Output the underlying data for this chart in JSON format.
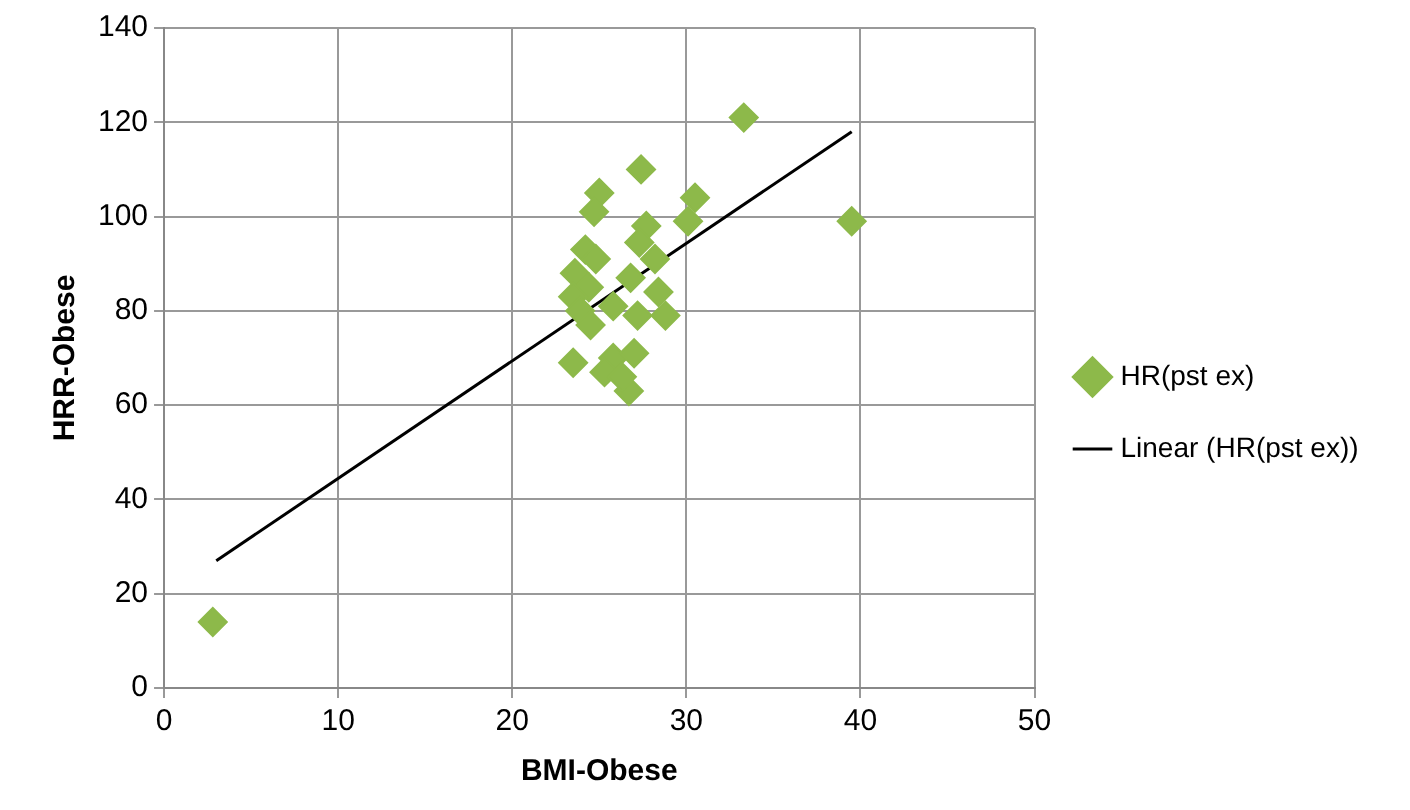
{
  "chart_data": {
    "type": "scatter",
    "xlabel": "BMI-Obese",
    "ylabel": "HRR-Obese",
    "xlim": [
      0,
      50
    ],
    "xticks": [
      0,
      10,
      20,
      30,
      40,
      50
    ],
    "ylim": [
      0,
      140
    ],
    "yticks": [
      0,
      20,
      40,
      60,
      80,
      100,
      120,
      140
    ],
    "grid": true,
    "legend": "right",
    "marker": "diamond",
    "series": [
      {
        "name": "HR(pst ex)",
        "type": "scatter",
        "color": "#8db94a",
        "x": [
          2.8,
          33.3,
          39.5,
          27.4,
          25.0,
          24.7,
          30.5,
          30.1,
          27.7,
          27.3,
          24.2,
          24.8,
          23.6,
          28.2,
          26.8,
          24.4,
          28.4,
          23.5,
          25.8,
          27.2,
          28.8,
          23.9,
          24.5,
          23.5,
          25.8,
          27.0,
          25.3,
          26.7,
          26.3
        ],
        "values": [
          14,
          121,
          99,
          110,
          105,
          101,
          104,
          99,
          98,
          94.5,
          93,
          91,
          88,
          91,
          87,
          85,
          84,
          83,
          81,
          79,
          79,
          80,
          77,
          69,
          70,
          71,
          67,
          63,
          66
        ]
      },
      {
        "name": "Linear (HR(pst ex))",
        "type": "line",
        "color": "#000000",
        "marker": "none",
        "x": [
          3,
          39.5
        ],
        "values": [
          27,
          118
        ]
      }
    ]
  }
}
